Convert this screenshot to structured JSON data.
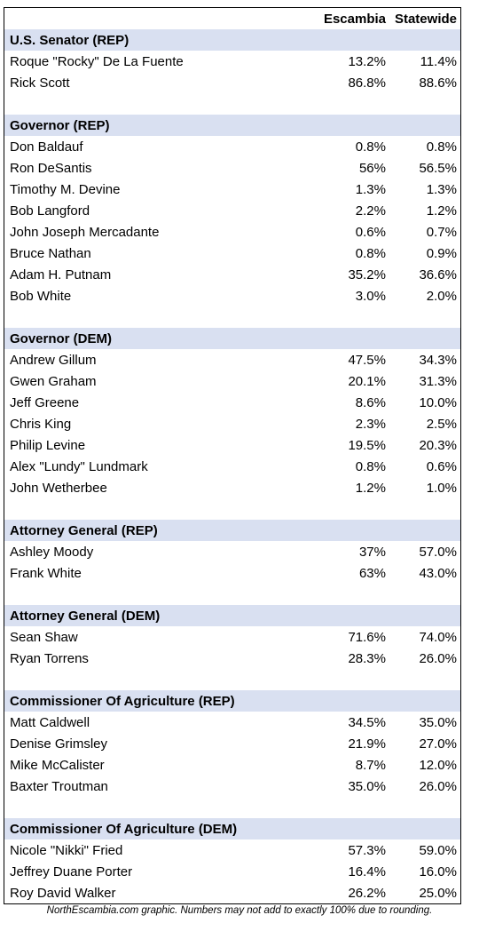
{
  "columns": [
    "Escambia",
    "Statewide"
  ],
  "sections": [
    {
      "title": "U.S. Senator  (REP)",
      "rows": [
        [
          "Roque \"Rocky\" De La Fuente",
          "13.2%",
          "11.4%"
        ],
        [
          "Rick Scott",
          "86.8%",
          "88.6%"
        ]
      ]
    },
    {
      "title": "Governor (REP)",
      "rows": [
        [
          "Don Baldauf",
          "0.8%",
          "0.8%"
        ],
        [
          "Ron DeSantis",
          "56%",
          "56.5%"
        ],
        [
          "Timothy M. Devine",
          "1.3%",
          "1.3%"
        ],
        [
          "Bob Langford",
          "2.2%",
          "1.2%"
        ],
        [
          "John Joseph Mercadante",
          "0.6%",
          "0.7%"
        ],
        [
          "Bruce Nathan",
          "0.8%",
          "0.9%"
        ],
        [
          "Adam H. Putnam",
          "35.2%",
          "36.6%"
        ],
        [
          "Bob White",
          "3.0%",
          "2.0%"
        ]
      ]
    },
    {
      "title": "Governor (DEM)",
      "rows": [
        [
          "Andrew Gillum",
          "47.5%",
          "34.3%"
        ],
        [
          "Gwen Graham",
          "20.1%",
          "31.3%"
        ],
        [
          "Jeff Greene",
          "8.6%",
          "10.0%"
        ],
        [
          "Chris King",
          "2.3%",
          "2.5%"
        ],
        [
          "Philip Levine",
          "19.5%",
          "20.3%"
        ],
        [
          "Alex \"Lundy\" Lundmark",
          "0.8%",
          "0.6%"
        ],
        [
          "John Wetherbee",
          "1.2%",
          "1.0%"
        ]
      ]
    },
    {
      "title": "Attorney General (REP)",
      "rows": [
        [
          "Ashley Moody",
          "37%",
          "57.0%"
        ],
        [
          "Frank White",
          "63%",
          "43.0%"
        ]
      ]
    },
    {
      "title": "Attorney General (DEM)",
      "rows": [
        [
          "Sean Shaw",
          "71.6%",
          "74.0%"
        ],
        [
          "Ryan Torrens",
          "28.3%",
          "26.0%"
        ]
      ]
    },
    {
      "title": "Commissioner Of Agriculture (REP)",
      "rows": [
        [
          "Matt Caldwell",
          "34.5%",
          "35.0%"
        ],
        [
          "Denise Grimsley",
          "21.9%",
          "27.0%"
        ],
        [
          "Mike McCalister",
          "8.7%",
          "12.0%"
        ],
        [
          "Baxter Troutman",
          "35.0%",
          "26.0%"
        ]
      ]
    },
    {
      "title": "Commissioner Of Agriculture (DEM)",
      "rows": [
        [
          "Nicole \"Nikki\" Fried",
          "57.3%",
          "59.0%"
        ],
        [
          "Jeffrey Duane Porter",
          "16.4%",
          "16.0%"
        ],
        [
          "Roy David Walker",
          "26.2%",
          "25.0%"
        ]
      ]
    }
  ],
  "footer": "NorthEscambia.com graphic. Numbers may not add to exactly 100% due to rounding."
}
